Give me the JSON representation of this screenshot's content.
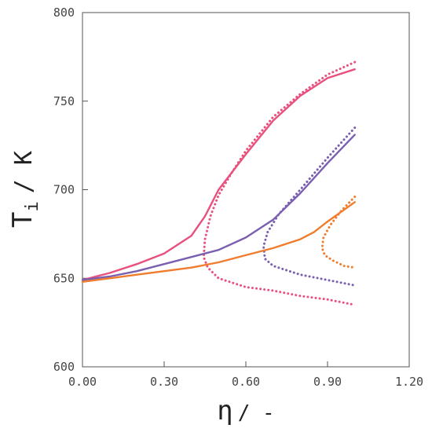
{
  "chart_data": {
    "type": "line",
    "xlabel_symbol": "η",
    "xlabel_unit": "/ -",
    "ylabel_main": "T",
    "ylabel_sub": "i",
    "ylabel_unit": "/ K",
    "xlim": [
      0.0,
      1.2
    ],
    "ylim": [
      600,
      800
    ],
    "x_ticks": [
      0.0,
      0.3,
      0.6,
      0.9,
      1.2
    ],
    "x_tick_labels": [
      "0.00",
      "0.30",
      "0.60",
      "0.90",
      "1.20"
    ],
    "y_ticks": [
      600,
      650,
      700,
      750,
      800
    ],
    "y_tick_labels": [
      "600",
      "650",
      "700",
      "750",
      "800"
    ],
    "grid": false,
    "series": [
      {
        "color": "#E8507E",
        "style": "solid",
        "points": [
          [
            0.0,
            649
          ],
          [
            0.1,
            653
          ],
          [
            0.2,
            658
          ],
          [
            0.3,
            664
          ],
          [
            0.4,
            674
          ],
          [
            0.45,
            685
          ],
          [
            0.5,
            700
          ],
          [
            0.6,
            720
          ],
          [
            0.7,
            739
          ],
          [
            0.8,
            753
          ],
          [
            0.9,
            763
          ],
          [
            1.0,
            768
          ]
        ]
      },
      {
        "color": "#E8507E",
        "style": "dotted",
        "points": [
          [
            1.0,
            772
          ],
          [
            0.9,
            765
          ],
          [
            0.8,
            754
          ],
          [
            0.7,
            741
          ],
          [
            0.6,
            722
          ],
          [
            0.55,
            710
          ],
          [
            0.5,
            697
          ],
          [
            0.47,
            685
          ],
          [
            0.45,
            672
          ],
          [
            0.445,
            662
          ],
          [
            0.46,
            656
          ],
          [
            0.5,
            650
          ],
          [
            0.6,
            645
          ],
          [
            0.7,
            643
          ],
          [
            0.8,
            640
          ],
          [
            0.9,
            638
          ],
          [
            1.0,
            635
          ]
        ]
      },
      {
        "color": "#7A5FB0",
        "style": "solid",
        "points": [
          [
            0.0,
            649
          ],
          [
            0.1,
            651
          ],
          [
            0.2,
            654
          ],
          [
            0.3,
            658
          ],
          [
            0.4,
            662
          ],
          [
            0.5,
            666
          ],
          [
            0.6,
            673
          ],
          [
            0.7,
            683
          ],
          [
            0.8,
            698
          ],
          [
            0.9,
            715
          ],
          [
            1.0,
            731
          ]
        ]
      },
      {
        "color": "#7A5FB0",
        "style": "dotted",
        "points": [
          [
            1.0,
            735
          ],
          [
            0.9,
            718
          ],
          [
            0.8,
            700
          ],
          [
            0.72,
            686
          ],
          [
            0.68,
            676
          ],
          [
            0.665,
            668
          ],
          [
            0.67,
            661
          ],
          [
            0.7,
            657
          ],
          [
            0.8,
            652
          ],
          [
            0.9,
            649
          ],
          [
            1.0,
            646
          ]
        ]
      },
      {
        "color": "#F07C2E",
        "style": "solid",
        "points": [
          [
            0.0,
            648
          ],
          [
            0.1,
            650
          ],
          [
            0.2,
            652
          ],
          [
            0.3,
            654
          ],
          [
            0.4,
            656
          ],
          [
            0.5,
            659
          ],
          [
            0.6,
            663
          ],
          [
            0.7,
            667
          ],
          [
            0.8,
            672
          ],
          [
            0.85,
            676
          ],
          [
            0.9,
            682
          ],
          [
            1.0,
            693
          ]
        ]
      },
      {
        "color": "#F07C2E",
        "style": "dotted",
        "points": [
          [
            1.0,
            696
          ],
          [
            0.95,
            688
          ],
          [
            0.91,
            680
          ],
          [
            0.885,
            673
          ],
          [
            0.88,
            667
          ],
          [
            0.89,
            663
          ],
          [
            0.92,
            660
          ],
          [
            0.96,
            657
          ],
          [
            1.0,
            656
          ]
        ]
      }
    ]
  }
}
